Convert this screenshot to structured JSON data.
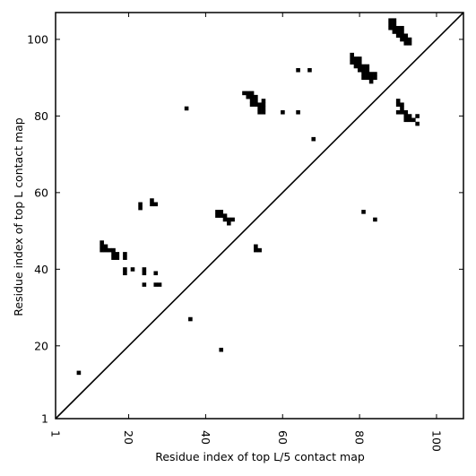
{
  "chart_data": {
    "type": "heatmap",
    "title": "",
    "xlabel": "Residue index of top L/5 contact map",
    "ylabel": "Residue index of top L contact map",
    "xlim": [
      1,
      107
    ],
    "ylim": [
      1,
      107
    ],
    "xticks": [
      1,
      20,
      40,
      60,
      80,
      100
    ],
    "yticks": [
      1,
      20,
      40,
      60,
      80,
      100
    ],
    "xtick_rotation": -90,
    "grid": false,
    "diagonal_line": true,
    "cell_color": "#000000",
    "background_color": "#ffffff",
    "upper_triangle_contacts": [
      [
        7,
        13
      ],
      [
        36,
        27
      ],
      [
        44,
        19
      ],
      [
        81,
        55
      ],
      [
        84,
        53
      ]
    ],
    "lower_triangle_contacts": [
      [
        13,
        45
      ],
      [
        13,
        46
      ],
      [
        13,
        47
      ],
      [
        14,
        45
      ],
      [
        14,
        46
      ],
      [
        15,
        45
      ],
      [
        16,
        45
      ],
      [
        16,
        44
      ],
      [
        16,
        43
      ],
      [
        17,
        44
      ],
      [
        17,
        43
      ],
      [
        19,
        39
      ],
      [
        19,
        40
      ],
      [
        19,
        43
      ],
      [
        19,
        44
      ],
      [
        21,
        40
      ],
      [
        23,
        56
      ],
      [
        23,
        57
      ],
      [
        24,
        36
      ],
      [
        24,
        39
      ],
      [
        24,
        40
      ],
      [
        26,
        57
      ],
      [
        26,
        58
      ],
      [
        27,
        57
      ],
      [
        27,
        39
      ],
      [
        27,
        36
      ],
      [
        28,
        36
      ],
      [
        35,
        82
      ],
      [
        43,
        54
      ],
      [
        43,
        55
      ],
      [
        44,
        54
      ],
      [
        44,
        55
      ],
      [
        45,
        53
      ],
      [
        45,
        54
      ],
      [
        46,
        53
      ],
      [
        46,
        52
      ],
      [
        47,
        53
      ],
      [
        50,
        86
      ],
      [
        51,
        85
      ],
      [
        51,
        86
      ],
      [
        52,
        83
      ],
      [
        52,
        84
      ],
      [
        52,
        85
      ],
      [
        52,
        86
      ],
      [
        53,
        83
      ],
      [
        53,
        84
      ],
      [
        53,
        85
      ],
      [
        53,
        45
      ],
      [
        53,
        46
      ],
      [
        54,
        45
      ],
      [
        54,
        81
      ],
      [
        54,
        82
      ],
      [
        54,
        83
      ],
      [
        55,
        81
      ],
      [
        55,
        82
      ],
      [
        55,
        83
      ],
      [
        55,
        84
      ],
      [
        60,
        81
      ],
      [
        64,
        81
      ],
      [
        64,
        92
      ],
      [
        67,
        92
      ],
      [
        68,
        74
      ],
      [
        78,
        94
      ],
      [
        78,
        95
      ],
      [
        78,
        96
      ],
      [
        79,
        93
      ],
      [
        79,
        94
      ],
      [
        79,
        95
      ],
      [
        80,
        92
      ],
      [
        80,
        93
      ],
      [
        80,
        94
      ],
      [
        80,
        95
      ],
      [
        81,
        90
      ],
      [
        81,
        91
      ],
      [
        81,
        92
      ],
      [
        81,
        93
      ],
      [
        82,
        90
      ],
      [
        82,
        91
      ],
      [
        82,
        92
      ],
      [
        82,
        93
      ],
      [
        83,
        89
      ],
      [
        83,
        90
      ],
      [
        83,
        91
      ],
      [
        84,
        90
      ],
      [
        84,
        91
      ],
      [
        88,
        103
      ],
      [
        88,
        104
      ],
      [
        88,
        105
      ],
      [
        89,
        102
      ],
      [
        89,
        103
      ],
      [
        89,
        104
      ],
      [
        89,
        105
      ],
      [
        90,
        101
      ],
      [
        90,
        102
      ],
      [
        90,
        103
      ],
      [
        90,
        81
      ],
      [
        90,
        83
      ],
      [
        90,
        84
      ],
      [
        91,
        100
      ],
      [
        91,
        101
      ],
      [
        91,
        102
      ],
      [
        91,
        103
      ],
      [
        91,
        81
      ],
      [
        91,
        82
      ],
      [
        91,
        83
      ],
      [
        92,
        99
      ],
      [
        92,
        100
      ],
      [
        92,
        101
      ],
      [
        92,
        79
      ],
      [
        92,
        80
      ],
      [
        92,
        81
      ],
      [
        93,
        99
      ],
      [
        93,
        100
      ],
      [
        93,
        79
      ],
      [
        93,
        80
      ],
      [
        94,
        79
      ],
      [
        95,
        80
      ],
      [
        95,
        78
      ]
    ]
  }
}
